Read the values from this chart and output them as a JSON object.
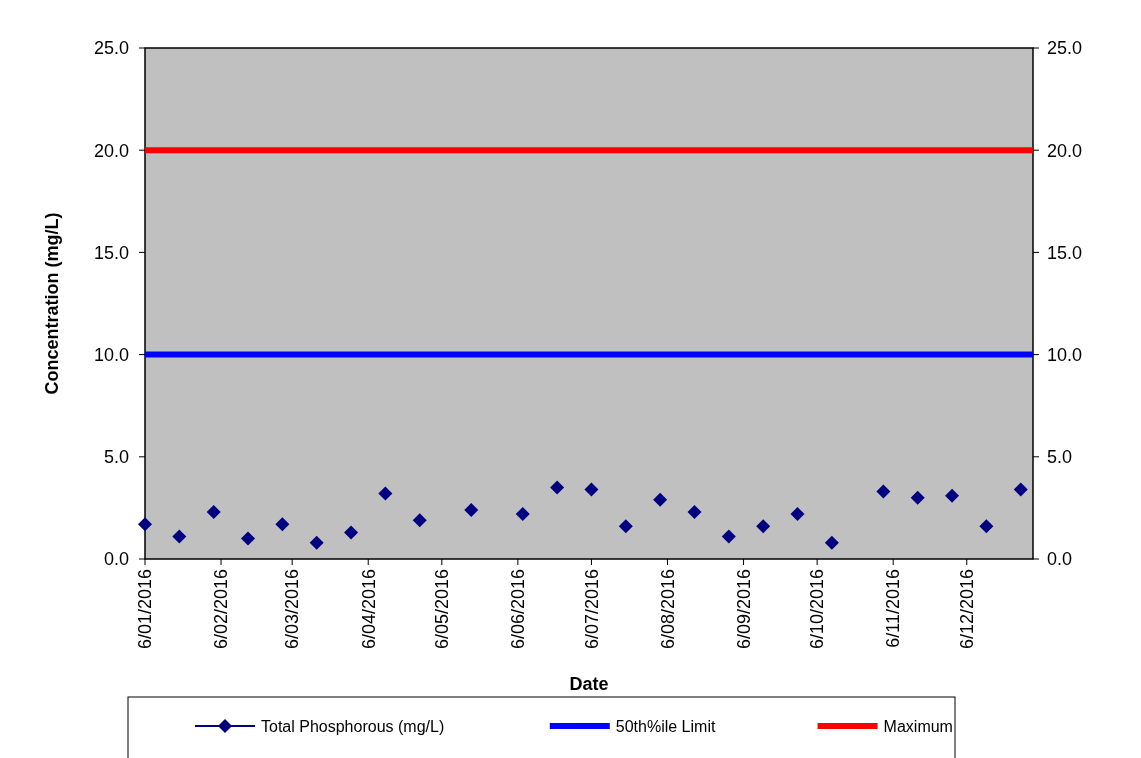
{
  "chart_data": {
    "type": "scatter",
    "xlabel": "Date",
    "ylabel": "Concentration (mg/L)",
    "xlim": [
      "2016-01-06",
      "2017-01-02"
    ],
    "xticks": [
      {
        "value": "2016-01-06",
        "label": "6/01/2016"
      },
      {
        "value": "2016-02-06",
        "label": "6/02/2016"
      },
      {
        "value": "2016-03-06",
        "label": "6/03/2016"
      },
      {
        "value": "2016-04-06",
        "label": "6/04/2016"
      },
      {
        "value": "2016-05-06",
        "label": "6/05/2016"
      },
      {
        "value": "2016-06-06",
        "label": "6/06/2016"
      },
      {
        "value": "2016-07-06",
        "label": "6/07/2016"
      },
      {
        "value": "2016-08-06",
        "label": "6/08/2016"
      },
      {
        "value": "2016-09-06",
        "label": "6/09/2016"
      },
      {
        "value": "2016-10-06",
        "label": "6/10/2016"
      },
      {
        "value": "2016-11-06",
        "label": "6/11/2016"
      },
      {
        "value": "2016-12-06",
        "label": "6/12/2016"
      }
    ],
    "ylim": [
      0,
      25
    ],
    "yticks": [
      {
        "value": 0,
        "label": "0.0"
      },
      {
        "value": 5,
        "label": "5.0"
      },
      {
        "value": 10,
        "label": "10.0"
      },
      {
        "value": 15,
        "label": "15.0"
      },
      {
        "value": 20,
        "label": "20.0"
      },
      {
        "value": 25,
        "label": "25.0"
      }
    ],
    "y2lim": [
      0,
      25
    ],
    "y2ticks": [
      {
        "value": 0,
        "label": "0.0"
      },
      {
        "value": 5,
        "label": "5.0"
      },
      {
        "value": 10,
        "label": "10.0"
      },
      {
        "value": 15,
        "label": "15.0"
      },
      {
        "value": 20,
        "label": "20.0"
      },
      {
        "value": 25,
        "label": "25.0"
      }
    ],
    "grid": false,
    "legend": "bottom",
    "series": [
      {
        "name": "Total Phosphorous (mg/L)",
        "marker": "diamond",
        "color": "#000080",
        "x": [
          "2016-01-06",
          "2016-01-20",
          "2016-02-03",
          "2016-02-17",
          "2016-03-02",
          "2016-03-16",
          "2016-03-30",
          "2016-04-13",
          "2016-04-27",
          "2016-05-18",
          "2016-06-08",
          "2016-06-22",
          "2016-07-06",
          "2016-07-20",
          "2016-08-03",
          "2016-08-17",
          "2016-08-31",
          "2016-09-14",
          "2016-09-28",
          "2016-10-12",
          "2016-11-02",
          "2016-11-16",
          "2016-11-30",
          "2016-12-14",
          "2016-12-28"
        ],
        "values": [
          1.7,
          1.1,
          2.3,
          1.0,
          1.7,
          0.8,
          1.3,
          3.2,
          1.9,
          2.4,
          2.2,
          3.5,
          3.4,
          1.6,
          2.9,
          2.3,
          1.1,
          1.6,
          2.2,
          0.8,
          3.3,
          3.0,
          3.1,
          1.6,
          3.4
        ]
      },
      {
        "name": "50th%ile Limit",
        "type": "line",
        "color": "#0000ff",
        "x": [
          "2016-01-06",
          "2017-01-02"
        ],
        "values": [
          10,
          10
        ]
      },
      {
        "name": "Maximum",
        "type": "line",
        "color": "#ff0000",
        "x": [
          "2016-01-06",
          "2017-01-02"
        ],
        "values": [
          20,
          20
        ]
      }
    ]
  }
}
